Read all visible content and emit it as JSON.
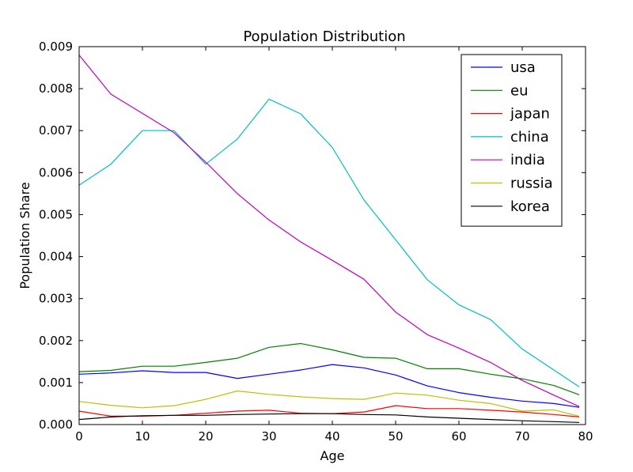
{
  "chart_data": {
    "type": "line",
    "title": "Population Distribution",
    "xlabel": "Age",
    "ylabel": "Population Share",
    "xlim": [
      0,
      80
    ],
    "ylim": [
      0,
      0.009
    ],
    "xticks": [
      "0",
      "10",
      "20",
      "30",
      "40",
      "50",
      "60",
      "70",
      "80"
    ],
    "yticks": [
      "0.000",
      "0.001",
      "0.002",
      "0.003",
      "0.004",
      "0.005",
      "0.006",
      "0.007",
      "0.008",
      "0.009"
    ],
    "grid": false,
    "legend_position": "top-right",
    "x": [
      0,
      5,
      10,
      15,
      20,
      25,
      30,
      35,
      40,
      45,
      50,
      55,
      60,
      65,
      70,
      75,
      79
    ],
    "series": [
      {
        "name": "usa",
        "color": "#0000ff",
        "values": [
          0.0012,
          0.00123,
          0.00128,
          0.00124,
          0.00124,
          0.0011,
          0.0012,
          0.0013,
          0.00143,
          0.00135,
          0.00118,
          0.00092,
          0.00076,
          0.00065,
          0.00056,
          0.0005,
          0.00041
        ]
      },
      {
        "name": "eu",
        "color": "#008000",
        "values": [
          0.00126,
          0.00129,
          0.00139,
          0.00139,
          0.00148,
          0.00158,
          0.00184,
          0.00193,
          0.00178,
          0.0016,
          0.00158,
          0.00133,
          0.00133,
          0.0012,
          0.00109,
          0.00093,
          0.00071
        ]
      },
      {
        "name": "japan",
        "color": "#ff0000",
        "values": [
          0.00032,
          0.0002,
          0.0002,
          0.00022,
          0.00027,
          0.00032,
          0.00034,
          0.00027,
          0.00026,
          0.0003,
          0.00045,
          0.00038,
          0.00038,
          0.00034,
          0.0003,
          0.00024,
          0.00018
        ]
      },
      {
        "name": "china",
        "color": "#00bfbf",
        "values": [
          0.0057,
          0.0062,
          0.007,
          0.007,
          0.0062,
          0.0068,
          0.00775,
          0.0074,
          0.0066,
          0.00535,
          0.0044,
          0.00345,
          0.00285,
          0.0025,
          0.0018,
          0.0013,
          0.0009
        ]
      },
      {
        "name": "india",
        "color": "#bf00bf",
        "values": [
          0.0088,
          0.00787,
          0.00741,
          0.00695,
          0.00625,
          0.0055,
          0.00487,
          0.00435,
          0.00391,
          0.00346,
          0.00268,
          0.00214,
          0.00182,
          0.00148,
          0.00105,
          0.0007,
          0.00043
        ]
      },
      {
        "name": "russia",
        "color": "#bfbf00",
        "values": [
          0.00055,
          0.00046,
          0.0004,
          0.00045,
          0.0006,
          0.0008,
          0.00072,
          0.00066,
          0.00062,
          0.0006,
          0.00075,
          0.0007,
          0.00058,
          0.0005,
          0.00032,
          0.00035,
          0.0002
        ]
      },
      {
        "name": "korea",
        "color": "#000000",
        "values": [
          0.00012,
          0.00018,
          0.00021,
          0.00022,
          0.00022,
          0.00024,
          0.00025,
          0.00026,
          0.00026,
          0.00024,
          0.00023,
          0.00018,
          0.00015,
          0.00012,
          9e-05,
          7e-05,
          5e-05
        ]
      }
    ]
  }
}
